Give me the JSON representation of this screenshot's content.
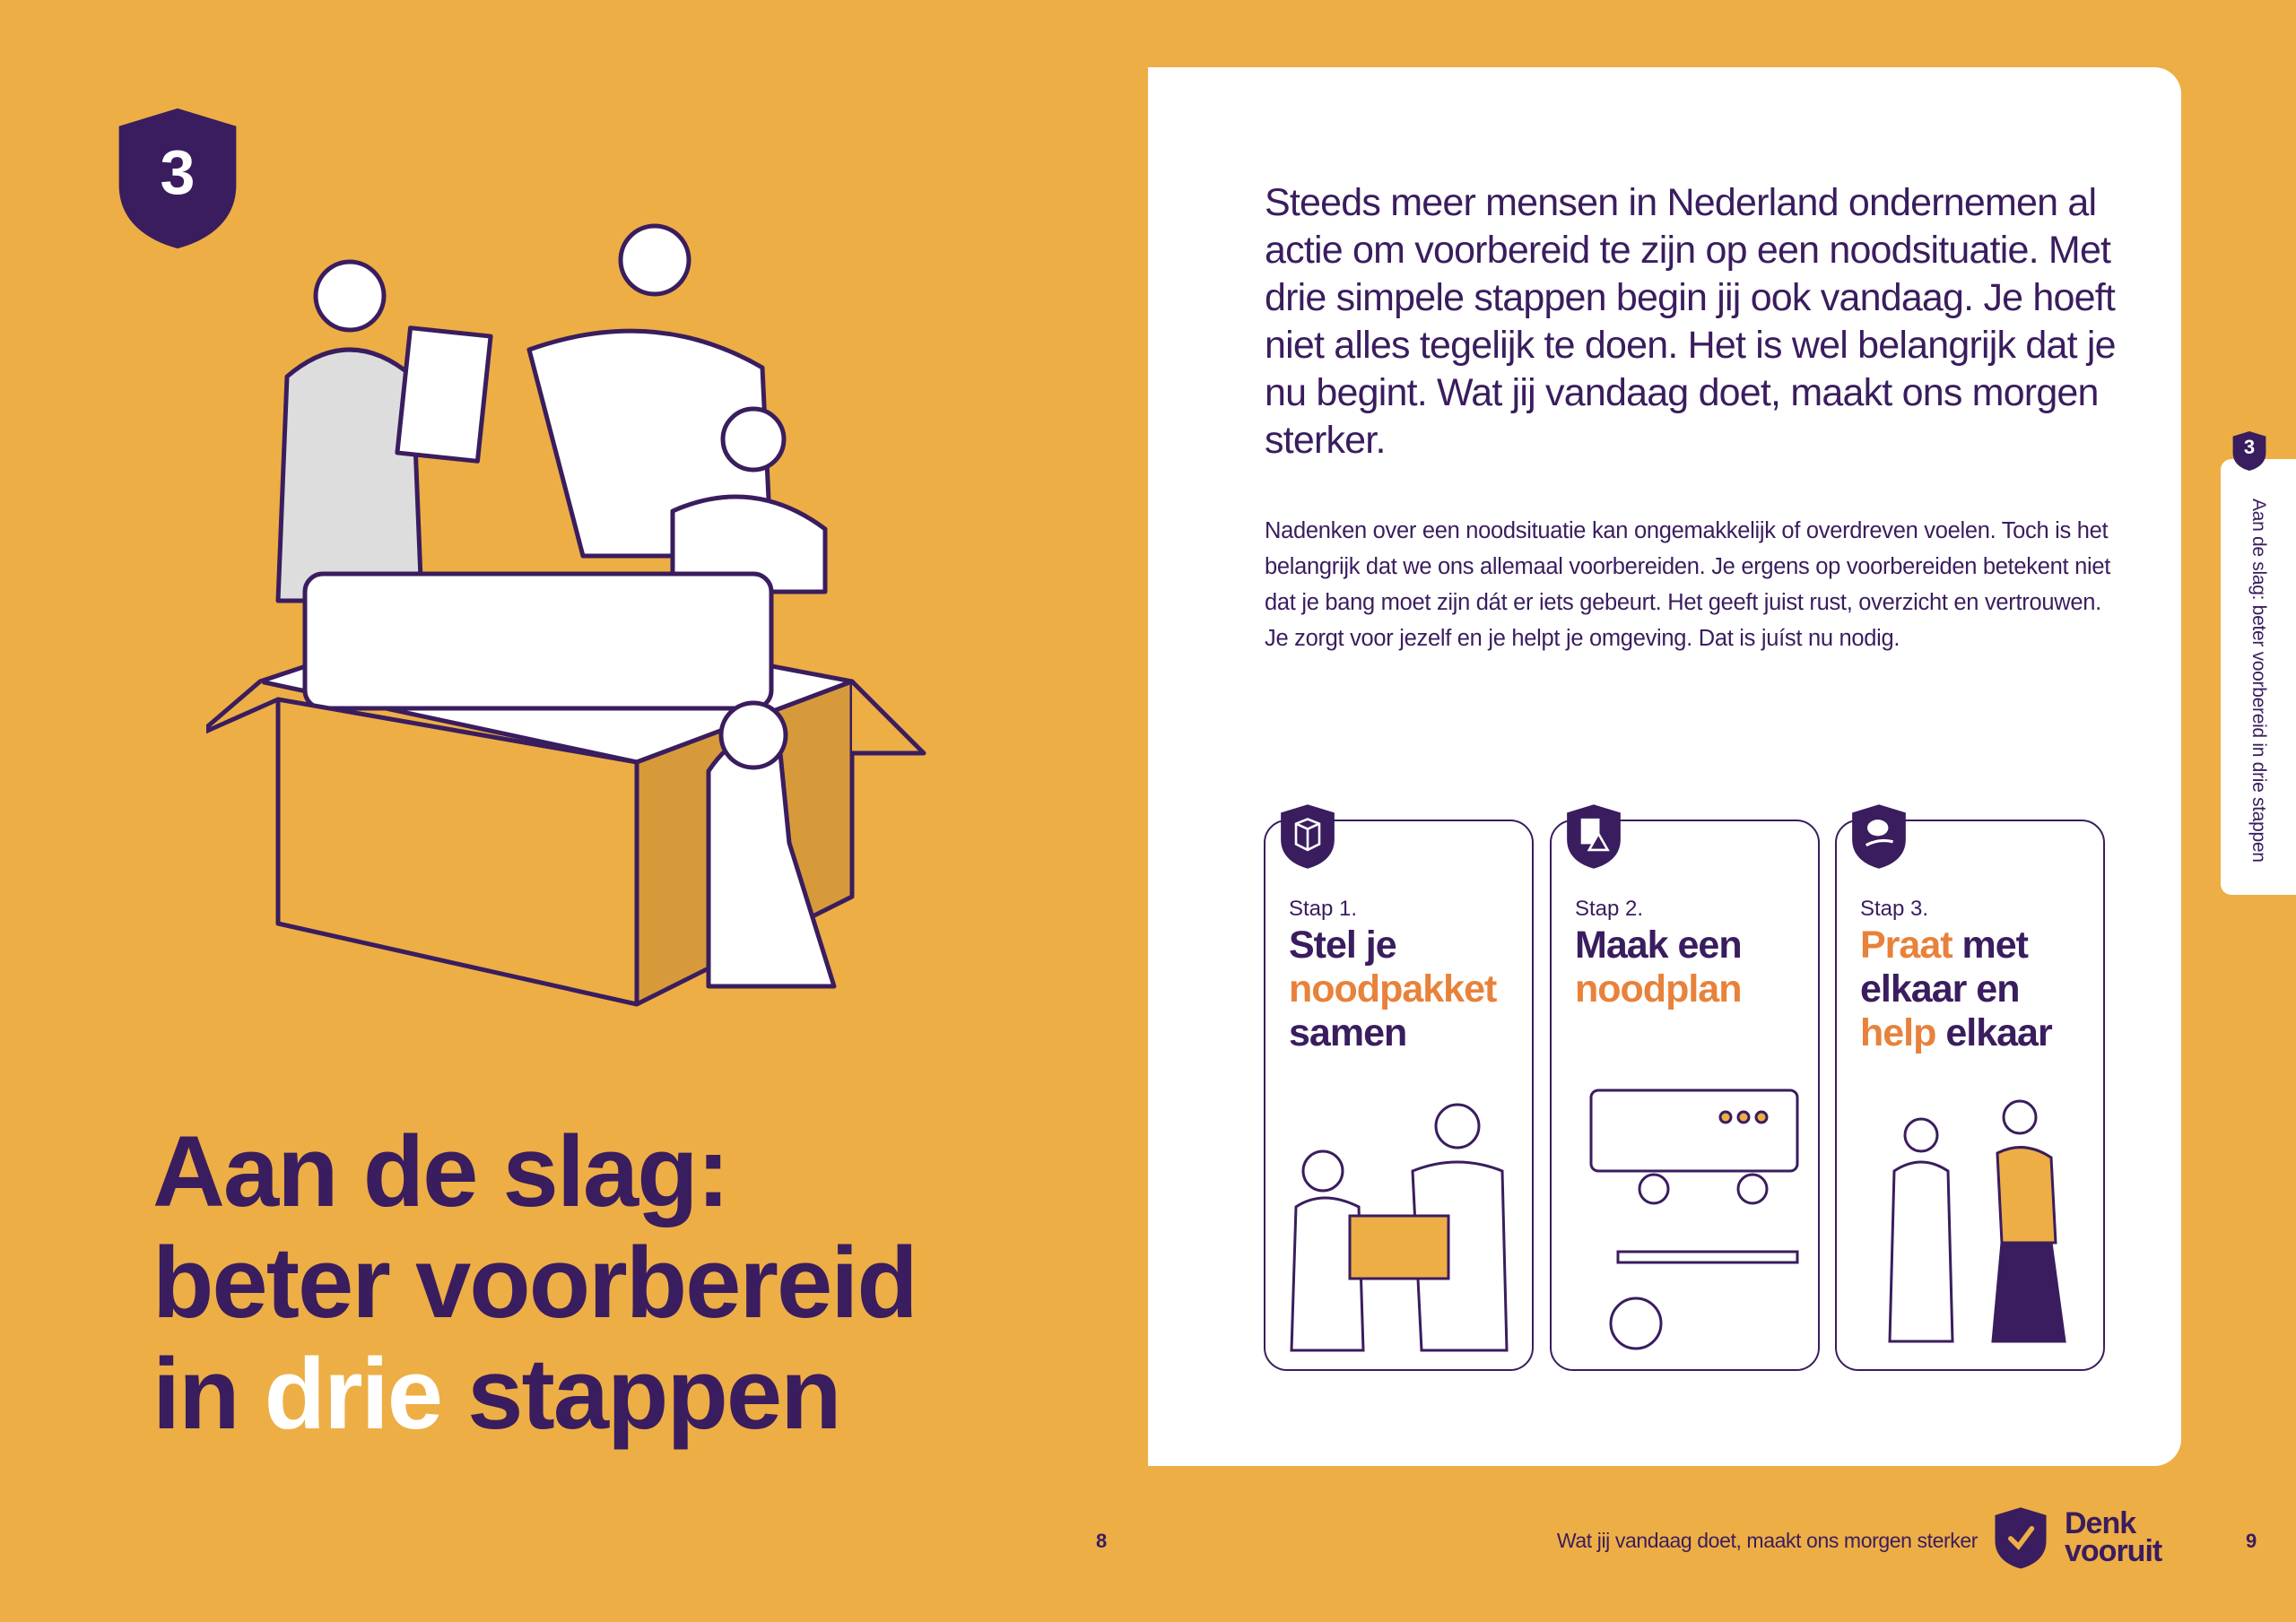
{
  "colors": {
    "background": "#EDAE45",
    "purple": "#3A1D5E",
    "orange": "#E8823A",
    "panel": "#FFFFFF"
  },
  "chapter": {
    "number": "3"
  },
  "title": {
    "line1": "Aan de slag:",
    "line2": "beter voorbereid",
    "line3_pre": "in ",
    "line3_highlight": "drie",
    "line3_post": " stappen"
  },
  "lead": "Steeds meer mensen in Nederland ondernemen al actie om voorbereid te zijn op een noodsituatie. Met drie simpele stappen begin jij ook vandaag. Je hoeft niet alles tegelijk te doen. Het is wel belangrijk dat je nu begint. Wat jij vandaag doet, maakt ons morgen sterker.",
  "body": "Nadenken over een noodsituatie kan ongemakkelijk of overdreven voelen. Toch is het belangrijk dat we ons allemaal voorbereiden. Je ergens op voorbereiden betekent niet dat je bang moet zijn dát er iets gebeurt. Het geeft juist rust, overzicht en vertrouwen. Je zorgt voor jezelf en je helpt je omgeving. Dat is juíst nu nodig.",
  "steps": [
    {
      "label": "Stap 1.",
      "icon": "package-icon",
      "a": "Stel je",
      "b": "noodpakket",
      "c": "samen"
    },
    {
      "label": "Stap 2.",
      "icon": "document-warning-icon",
      "a": "Maak een",
      "b": "noodplan"
    },
    {
      "label": "Stap 3.",
      "icon": "chat-help-icon",
      "a": "Praat",
      "b": "met",
      "c": "elkaar en",
      "d": "help",
      "e": "elkaar"
    }
  ],
  "footer": {
    "page_left": "8",
    "tagline": "Wat jij vandaag doet, maakt ons morgen sterker",
    "logo_line1": "Denk",
    "logo_line2": "vooruit",
    "page_right": "9"
  },
  "side_tab": {
    "number": "3",
    "text": "Aan de slag: beter voorbereid in drie stappen"
  }
}
